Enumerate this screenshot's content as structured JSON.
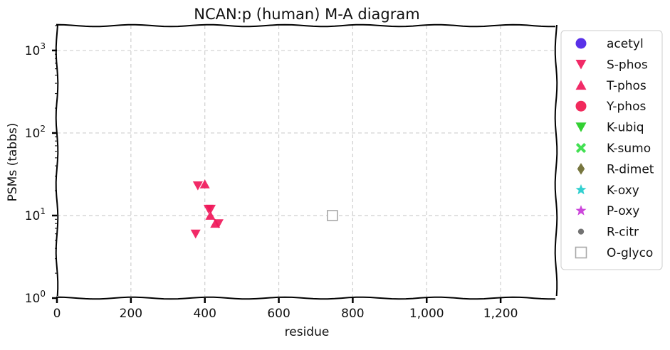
{
  "chart_data": {
    "type": "scatter",
    "title": "NCAN:p (human) M-A diagram",
    "xlabel": "residue",
    "ylabel": "PSMs (tabbs)",
    "xlim": [
      0,
      1350
    ],
    "ylim": [
      1,
      2000
    ],
    "yscale": "log",
    "grid": true,
    "legend_position": "right-outside",
    "x_ticks": [
      {
        "value": 0,
        "label": "0"
      },
      {
        "value": 200,
        "label": "200"
      },
      {
        "value": 400,
        "label": "400"
      },
      {
        "value": 600,
        "label": "600"
      },
      {
        "value": 800,
        "label": "800"
      },
      {
        "value": 1000,
        "label": "1,000"
      },
      {
        "value": 1200,
        "label": "1,200"
      }
    ],
    "y_ticks": [
      {
        "value": 1,
        "base": "10",
        "exp": "0"
      },
      {
        "value": 10,
        "base": "10",
        "exp": "1"
      },
      {
        "value": 100,
        "base": "10",
        "exp": "2"
      },
      {
        "value": 1000,
        "base": "10",
        "exp": "3"
      }
    ],
    "series": [
      {
        "name": "acetyl",
        "marker": "circle",
        "color": "#4b1fe6",
        "points": []
      },
      {
        "name": "S-phos",
        "marker": "triangle-down",
        "color": "#f0185a",
        "points": [
          {
            "x": 375,
            "y": 6
          },
          {
            "x": 381,
            "y": 23
          },
          {
            "x": 410,
            "y": 12
          },
          {
            "x": 416,
            "y": 12
          },
          {
            "x": 437,
            "y": 8
          }
        ]
      },
      {
        "name": "T-phos",
        "marker": "triangle-up",
        "color": "#f0185a",
        "points": [
          {
            "x": 400,
            "y": 24
          },
          {
            "x": 415,
            "y": 10
          },
          {
            "x": 428,
            "y": 8
          }
        ]
      },
      {
        "name": "Y-phos",
        "marker": "circle",
        "color": "#f0184e",
        "points": []
      },
      {
        "name": "K-ubiq",
        "marker": "triangle-down",
        "color": "#22cc22",
        "points": []
      },
      {
        "name": "K-sumo",
        "marker": "x-filled",
        "color": "#33dd44",
        "points": []
      },
      {
        "name": "R-dimet",
        "marker": "diamond",
        "color": "#6b6a2f",
        "points": []
      },
      {
        "name": "K-oxy",
        "marker": "star",
        "color": "#22cccc",
        "points": []
      },
      {
        "name": "P-oxy",
        "marker": "star",
        "color": "#c837d8",
        "points": []
      },
      {
        "name": "R-citr",
        "marker": "dot",
        "color": "#666666",
        "points": []
      },
      {
        "name": "O-glyco",
        "marker": "square-open",
        "color": "#a8a8a8",
        "points": [
          {
            "x": 745,
            "y": 10
          }
        ]
      }
    ]
  }
}
